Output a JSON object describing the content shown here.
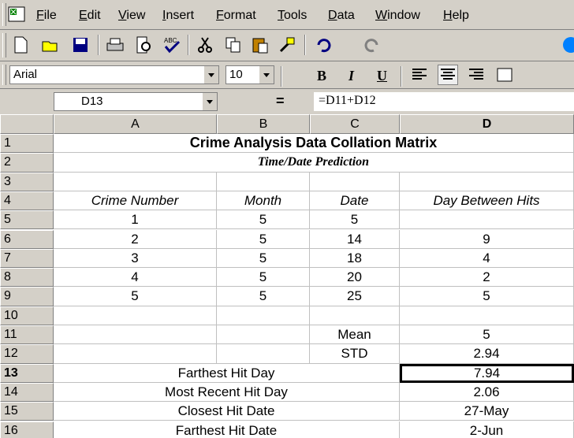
{
  "menu": [
    "File",
    "Edit",
    "View",
    "Insert",
    "Format",
    "Tools",
    "Data",
    "Window",
    "Help"
  ],
  "format_toolbar": {
    "font": "Arial",
    "size": "10",
    "bold": "B",
    "italic": "I",
    "underline": "U"
  },
  "formula_bar": {
    "name_box": "D13",
    "equals": "=",
    "formula": "=D11+D12"
  },
  "sheet": {
    "columns": [
      "A",
      "B",
      "C",
      "D"
    ],
    "rows": [
      {
        "label": "1",
        "cells": {
          "ABCD": "Crime Analysis Data Collation Matrix"
        }
      },
      {
        "label": "2",
        "cells": {
          "ABCD": "Time/Date Prediction"
        }
      },
      {
        "label": "3",
        "cells": {}
      },
      {
        "label": "4",
        "cells": {
          "A": "Crime Number",
          "B": "Month",
          "C": "Date",
          "D": "Day Between Hits"
        }
      },
      {
        "label": "5",
        "cells": {
          "A": "1",
          "B": "5",
          "C": "5"
        }
      },
      {
        "label": "6",
        "cells": {
          "A": "2",
          "B": "5",
          "C": "14",
          "D": "9"
        }
      },
      {
        "label": "7",
        "cells": {
          "A": "3",
          "B": "5",
          "C": "18",
          "D": "4"
        }
      },
      {
        "label": "8",
        "cells": {
          "A": "4",
          "B": "5",
          "C": "20",
          "D": "2"
        }
      },
      {
        "label": "9",
        "cells": {
          "A": "5",
          "B": "5",
          "C": "25",
          "D": "5"
        }
      },
      {
        "label": "10",
        "cells": {}
      },
      {
        "label": "11",
        "cells": {
          "C": "Mean",
          "D": "5"
        }
      },
      {
        "label": "12",
        "cells": {
          "C": "STD",
          "D": "2.94"
        }
      },
      {
        "label": "13",
        "cells": {
          "ABC": "Farthest Hit Day",
          "D": "7.94"
        }
      },
      {
        "label": "14",
        "cells": {
          "ABC": "Most Recent Hit Day",
          "D": "2.06"
        }
      },
      {
        "label": "15",
        "cells": {
          "ABC": "Closest Hit Date",
          "D": "27-May"
        }
      },
      {
        "label": "16",
        "cells": {
          "ABC": "Farthest Hit Date",
          "D": "2-Jun"
        }
      }
    ]
  }
}
